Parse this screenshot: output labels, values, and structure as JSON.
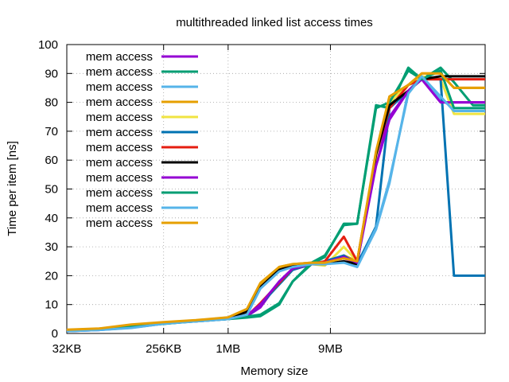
{
  "chart_data": {
    "type": "line",
    "title": "multithreaded linked list access times",
    "xlabel": "Memory size",
    "ylabel": "Time per item [ns]",
    "ylim": [
      0,
      100
    ],
    "xlim": [
      32,
      256000
    ],
    "x_scale": "log",
    "x_unit": "KB",
    "grid": true,
    "legend_position": "top-left",
    "x_ticks": [
      {
        "value": 32,
        "label": "32KB"
      },
      {
        "value": 256,
        "label": "256KB"
      },
      {
        "value": 1024,
        "label": "1MB"
      },
      {
        "value": 9216,
        "label": "9MB"
      }
    ],
    "y_ticks": [
      0,
      10,
      20,
      30,
      40,
      50,
      60,
      70,
      80,
      90,
      100
    ],
    "x": [
      32,
      64,
      128,
      256,
      512,
      1024,
      1536,
      2048,
      3072,
      4096,
      6144,
      8192,
      12288,
      16384,
      24576,
      32768,
      49152,
      65536,
      98304,
      131072,
      196608,
      256000
    ],
    "series": [
      {
        "name": "mem access",
        "color": "#9400d3",
        "values": [
          0.8,
          1.2,
          2.0,
          3.5,
          4.2,
          5.0,
          6.0,
          9.0,
          18.0,
          22.0,
          24.0,
          24.5,
          26.0,
          24.5,
          60.0,
          75.0,
          84.0,
          88.0,
          80.0,
          80.0,
          80.0,
          80.0
        ]
      },
      {
        "name": "mem access",
        "color": "#009e73",
        "values": [
          1.0,
          1.5,
          2.8,
          3.3,
          4.3,
          5.0,
          5.5,
          6.0,
          10.0,
          18.0,
          24.0,
          26.5,
          38.0,
          38.0,
          79.0,
          78.0,
          92.0,
          88.0,
          92.0,
          87.0,
          79.0,
          79.0
        ]
      },
      {
        "name": "mem access",
        "color": "#56b4e9",
        "values": [
          0.8,
          1.2,
          2.0,
          3.5,
          4.2,
          5.0,
          6.5,
          16.0,
          22.0,
          23.0,
          24.0,
          24.0,
          25.0,
          23.0,
          36.0,
          52.0,
          84.0,
          89.0,
          81.0,
          78.0,
          78.0,
          78.0
        ]
      },
      {
        "name": "mem access",
        "color": "#e69f00",
        "values": [
          1.2,
          1.6,
          3.0,
          3.8,
          4.5,
          5.5,
          8.0,
          17.0,
          23.0,
          24.0,
          24.5,
          24.5,
          27.0,
          25.0,
          62.0,
          82.0,
          86.0,
          90.0,
          90.0,
          85.0,
          85.0,
          85.0
        ]
      },
      {
        "name": "mem access",
        "color": "#f0e442",
        "values": [
          1.0,
          1.4,
          2.5,
          3.5,
          4.4,
          5.2,
          7.5,
          16.0,
          22.0,
          23.5,
          24.0,
          23.5,
          30.0,
          25.0,
          61.0,
          80.0,
          86.0,
          89.0,
          88.0,
          76.0,
          76.0,
          76.0
        ]
      },
      {
        "name": "mem access",
        "color": "#0072b2",
        "values": [
          0.8,
          1.3,
          2.0,
          3.4,
          4.3,
          5.0,
          6.0,
          10.0,
          17.0,
          22.0,
          24.0,
          25.0,
          27.0,
          24.0,
          37.0,
          78.0,
          84.0,
          88.0,
          88.0,
          20.0,
          20.0,
          20.0
        ]
      },
      {
        "name": "mem access",
        "color": "#e51e10",
        "values": [
          0.9,
          1.3,
          2.2,
          3.6,
          4.4,
          5.1,
          6.0,
          10.5,
          17.5,
          22.5,
          24.0,
          25.0,
          33.5,
          25.0,
          62.0,
          78.0,
          86.0,
          88.0,
          88.0,
          88.0,
          88.0,
          88.0
        ]
      },
      {
        "name": "mem access",
        "color": "#000000",
        "values": [
          1.0,
          1.4,
          2.4,
          3.6,
          4.4,
          5.2,
          7.5,
          16.0,
          22.0,
          23.5,
          24.0,
          24.0,
          25.0,
          24.0,
          62.0,
          79.0,
          84.0,
          88.0,
          89.0,
          89.0,
          89.0,
          89.0
        ]
      },
      {
        "name": "mem access",
        "color": "#9400d3",
        "values": [
          0.9,
          1.3,
          2.1,
          3.5,
          4.3,
          5.1,
          6.2,
          10.0,
          18.0,
          22.5,
          24.0,
          24.5,
          26.5,
          24.5,
          58.0,
          74.0,
          84.0,
          88.0,
          80.0,
          80.0,
          80.0,
          80.0
        ]
      },
      {
        "name": "mem access",
        "color": "#009e73",
        "values": [
          1.0,
          1.5,
          2.6,
          3.4,
          4.2,
          5.0,
          5.8,
          6.5,
          10.5,
          18.0,
          24.5,
          27.0,
          37.5,
          38.0,
          78.0,
          80.0,
          91.0,
          88.0,
          91.0,
          78.0,
          78.0,
          78.0
        ]
      },
      {
        "name": "mem access",
        "color": "#56b4e9",
        "values": [
          0.8,
          1.2,
          1.9,
          3.4,
          4.2,
          5.0,
          6.5,
          15.5,
          21.5,
          23.0,
          24.0,
          24.0,
          24.5,
          23.0,
          36.5,
          53.0,
          83.0,
          89.0,
          82.0,
          77.0,
          77.0,
          77.0
        ]
      },
      {
        "name": "mem access",
        "color": "#e69f00",
        "values": [
          1.3,
          1.7,
          3.1,
          3.9,
          4.6,
          5.6,
          8.5,
          17.5,
          23.0,
          24.0,
          24.5,
          24.5,
          26.0,
          25.0,
          63.0,
          82.0,
          86.0,
          90.0,
          90.0,
          85.0,
          85.0,
          85.0
        ]
      }
    ]
  }
}
